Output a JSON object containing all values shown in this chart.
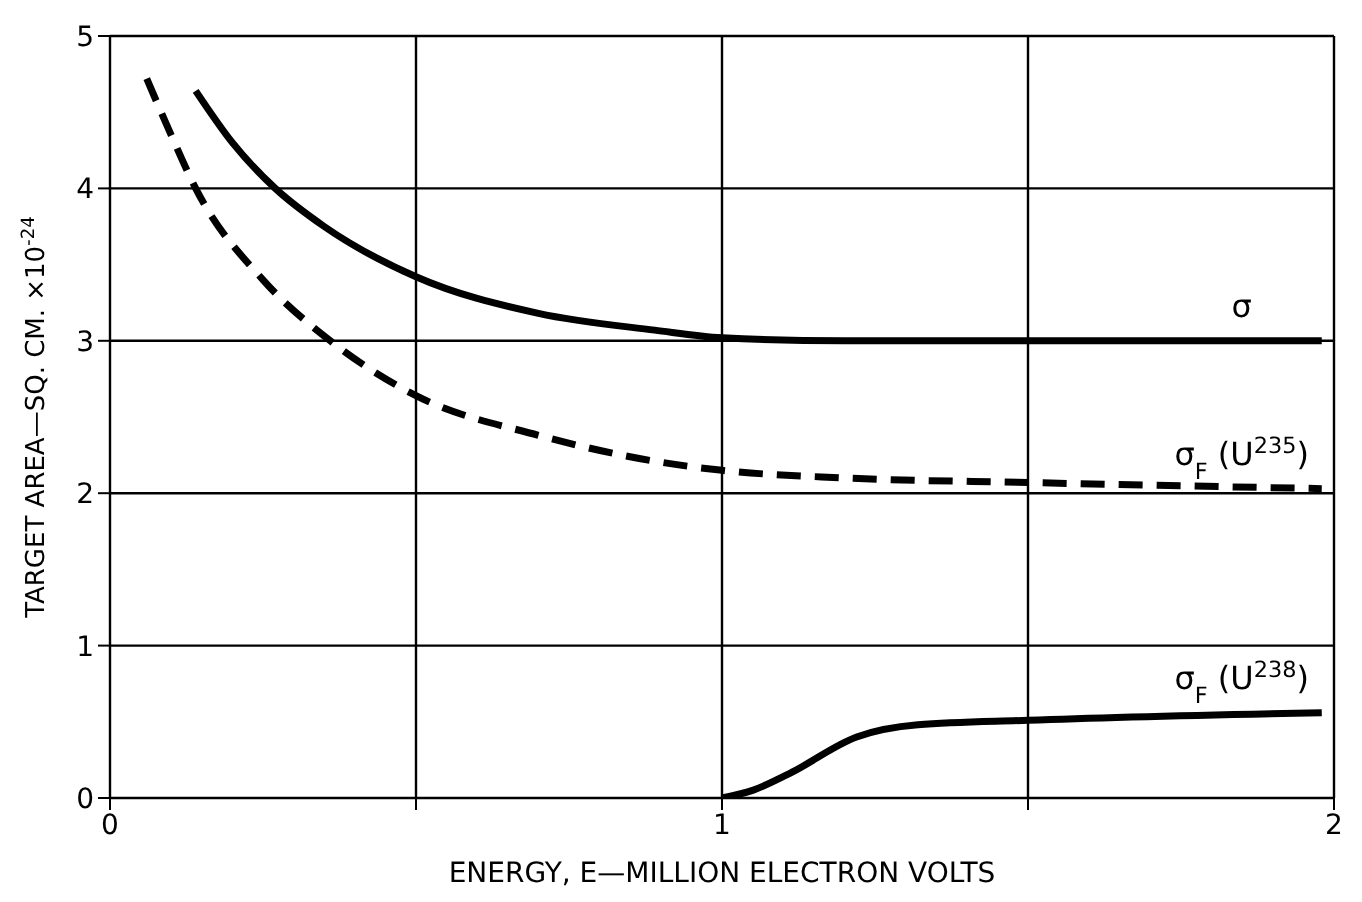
{
  "chart_data": {
    "type": "line",
    "xlabel": "ENERGY, E—MILLION ELECTRON VOLTS",
    "ylabel": "TARGET AREA—SQ. CM. ×10$^{-24}$",
    "xlim": [
      0,
      2
    ],
    "xticks": [
      0,
      {
        "value": 0.5,
        "label": null
      },
      1,
      {
        "value": 1.5,
        "label": null
      },
      2
    ],
    "ylim": [
      0,
      5
    ],
    "yticks": [
      0,
      1,
      2,
      3,
      4,
      5
    ],
    "grid": true,
    "legend": false,
    "marker": "none",
    "series": [
      {
        "name": "σ",
        "color": "#000000",
        "line_style": "solid",
        "x": [
          0.14,
          0.2,
          0.27,
          0.35,
          0.5,
          0.7,
          0.89,
          1,
          1.2,
          1.5,
          1.98
        ],
        "values": [
          4.64,
          4.3,
          4,
          3.75,
          3.42,
          3.18,
          3.07,
          3.02,
          3.0,
          3.0,
          3.0
        ]
      },
      {
        "name": "σ$_{F}$ (U$^{235}$)",
        "color": "#000000",
        "line_style": "dashed",
        "x": [
          0.06,
          0.1,
          0.14,
          0.25,
          0.36,
          0.5,
          0.7,
          0.89,
          1,
          1.2,
          1.5,
          1.98
        ],
        "values": [
          4.72,
          4.35,
          4,
          3.4,
          3,
          2.64,
          2.38,
          2.21,
          2.15,
          2.1,
          2.07,
          2.03
        ]
      },
      {
        "name": "σ$_{F}$ (U$^{238}$)",
        "color": "#000000",
        "line_style": "solid",
        "x": [
          1,
          1.05,
          1.11,
          1.22,
          1.32,
          1.5,
          1.98
        ],
        "values": [
          0,
          0.05,
          0.16,
          0.4,
          0.48,
          0.51,
          0.56
        ]
      }
    ]
  }
}
